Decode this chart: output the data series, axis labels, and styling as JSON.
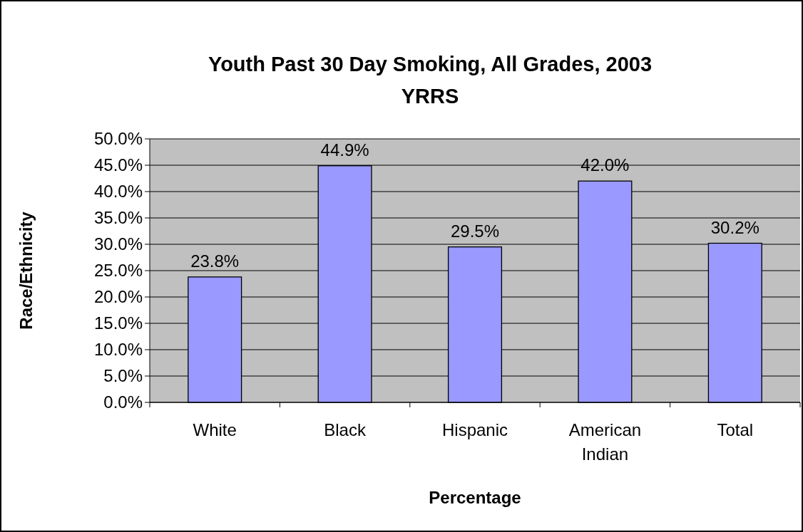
{
  "chart_data": {
    "type": "bar",
    "title": "Youth Past 30 Day Smoking, All Grades, 2003",
    "subtitle": "YRRS",
    "xlabel": "Percentage",
    "ylabel": "Race/Ethnicity",
    "categories": [
      "White",
      "Black",
      "Hispanic",
      "American Indian",
      "Total"
    ],
    "values": [
      23.8,
      44.9,
      29.5,
      42.0,
      30.2
    ],
    "color": "#9999ff",
    "value_labels": [
      "23.8%",
      "44.9%",
      "29.5%",
      "42.0%",
      "30.2%"
    ],
    "ylim": [
      0,
      50
    ],
    "yticks": [
      {
        "value": 0,
        "label": "0.0%"
      },
      {
        "value": 5,
        "label": "5.0%"
      },
      {
        "value": 10,
        "label": "10.0%"
      },
      {
        "value": 15,
        "label": "15.0%"
      },
      {
        "value": 20,
        "label": "20.0%"
      },
      {
        "value": 25,
        "label": "25.0%"
      },
      {
        "value": 30,
        "label": "30.0%"
      },
      {
        "value": 35,
        "label": "35.0%"
      },
      {
        "value": 40,
        "label": "40.0%"
      },
      {
        "value": 45,
        "label": "45.0%"
      },
      {
        "value": 50,
        "label": "50.0%"
      }
    ],
    "grid": "y"
  }
}
